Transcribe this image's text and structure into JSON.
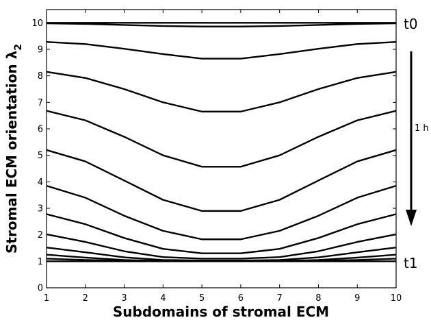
{
  "chart_data": {
    "type": "line",
    "xlabel": "Subdomains of stromal ECM",
    "ylabel": "Stromal ECM orientation λ",
    "ylabel_subscript": "2",
    "xlim": [
      1,
      10
    ],
    "ylim": [
      0,
      10.5
    ],
    "xticks": [
      1,
      2,
      3,
      4,
      5,
      6,
      7,
      8,
      9,
      10
    ],
    "yticks": [
      0,
      1,
      2,
      3,
      4,
      5,
      6,
      7,
      8,
      9,
      10
    ],
    "grid": false,
    "line_color": "#000000",
    "x": [
      1,
      2,
      3,
      4,
      5,
      6,
      7,
      8,
      9,
      10
    ],
    "series": [
      {
        "values": [
          10.0,
          10.0,
          10.0,
          10.0,
          10.0,
          10.0,
          10.0,
          10.0,
          10.0,
          10.0
        ]
      },
      {
        "values": [
          9.98,
          9.96,
          9.92,
          9.88,
          9.86,
          9.86,
          9.88,
          9.92,
          9.96,
          9.98
        ]
      },
      {
        "values": [
          9.28,
          9.2,
          9.02,
          8.82,
          8.65,
          8.65,
          8.82,
          9.02,
          9.2,
          9.28
        ]
      },
      {
        "values": [
          8.15,
          7.92,
          7.5,
          7.0,
          6.65,
          6.65,
          7.0,
          7.5,
          7.92,
          8.15
        ]
      },
      {
        "values": [
          6.68,
          6.32,
          5.7,
          5.0,
          4.57,
          4.57,
          5.0,
          5.7,
          6.32,
          6.68
        ]
      },
      {
        "values": [
          5.2,
          4.77,
          4.05,
          3.32,
          2.9,
          2.9,
          3.32,
          4.05,
          4.77,
          5.2
        ]
      },
      {
        "values": [
          3.85,
          3.4,
          2.72,
          2.15,
          1.83,
          1.83,
          2.15,
          2.72,
          3.4,
          3.85
        ]
      },
      {
        "values": [
          2.78,
          2.4,
          1.88,
          1.47,
          1.3,
          1.3,
          1.47,
          1.88,
          2.4,
          2.78
        ]
      },
      {
        "values": [
          2.02,
          1.73,
          1.38,
          1.16,
          1.1,
          1.1,
          1.16,
          1.38,
          1.73,
          2.02
        ]
      },
      {
        "values": [
          1.52,
          1.34,
          1.15,
          1.05,
          1.03,
          1.03,
          1.05,
          1.15,
          1.34,
          1.52
        ]
      },
      {
        "values": [
          1.25,
          1.14,
          1.05,
          1.01,
          1.01,
          1.01,
          1.01,
          1.05,
          1.14,
          1.25
        ]
      },
      {
        "values": [
          1.1,
          1.05,
          1.02,
          1.0,
          1.0,
          1.0,
          1.0,
          1.02,
          1.05,
          1.1
        ]
      },
      {
        "values": [
          1.0,
          1.0,
          1.0,
          1.0,
          1.0,
          1.0,
          1.0,
          1.0,
          1.0,
          1.0
        ]
      }
    ],
    "annotations": {
      "start_label": "t0",
      "end_label": "t1",
      "duration_label": "1 h"
    }
  }
}
